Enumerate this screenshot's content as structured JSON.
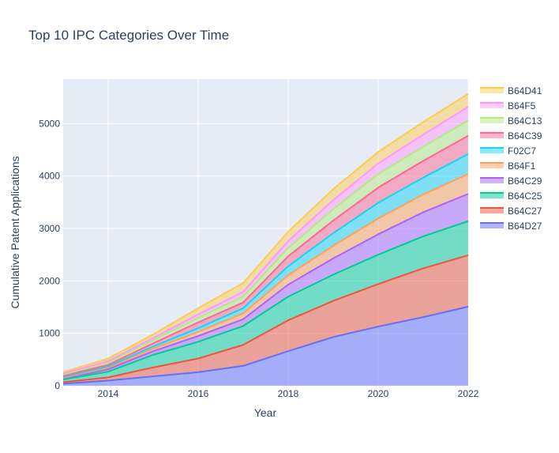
{
  "chart_data": {
    "type": "area",
    "stacked": true,
    "title": "Top 10 IPC Categories Over Time",
    "xlabel": "Year",
    "ylabel": "Cumulative Patent Applications",
    "x": [
      2013,
      2014,
      2015,
      2016,
      2017,
      2018,
      2019,
      2020,
      2021,
      2022
    ],
    "xlim": [
      2013,
      2022
    ],
    "ylim": [
      0,
      5850
    ],
    "x_ticks": [
      2014,
      2016,
      2018,
      2020,
      2022
    ],
    "y_ticks": [
      0,
      1000,
      2000,
      3000,
      4000,
      5000
    ],
    "grid": true,
    "legend_position": "right",
    "series": [
      {
        "name": "B64D27",
        "color": "#636efa",
        "values": [
          40,
          100,
          180,
          260,
          380,
          660,
          930,
          1130,
          1310,
          1510
        ]
      },
      {
        "name": "B64C27",
        "color": "#ef553b",
        "values": [
          30,
          60,
          170,
          260,
          400,
          590,
          690,
          810,
          930,
          980
        ]
      },
      {
        "name": "B64C25",
        "color": "#00cc96",
        "values": [
          50,
          110,
          240,
          320,
          360,
          450,
          500,
          560,
          610,
          650
        ]
      },
      {
        "name": "B64C29",
        "color": "#ab63fa",
        "values": [
          20,
          45,
          70,
          110,
          130,
          230,
          310,
          390,
          460,
          520
        ]
      },
      {
        "name": "B64F1",
        "color": "#ffa15a",
        "values": [
          15,
          30,
          50,
          80,
          110,
          180,
          240,
          300,
          340,
          380
        ]
      },
      {
        "name": "F02C7",
        "color": "#19d3f3",
        "values": [
          15,
          25,
          40,
          70,
          100,
          170,
          240,
          300,
          320,
          380
        ]
      },
      {
        "name": "B64C39",
        "color": "#ff6692",
        "values": [
          20,
          30,
          60,
          110,
          110,
          190,
          240,
          290,
          320,
          350
        ]
      },
      {
        "name": "B64C13",
        "color": "#b6e880",
        "values": [
          25,
          40,
          60,
          90,
          110,
          160,
          220,
          260,
          270,
          290
        ]
      },
      {
        "name": "B64F5",
        "color": "#ff97ff",
        "values": [
          20,
          30,
          40,
          60,
          90,
          130,
          170,
          200,
          230,
          260
        ]
      },
      {
        "name": "B64D41",
        "color": "#fecb52",
        "values": [
          25,
          50,
          70,
          120,
          170,
          180,
          210,
          220,
          240,
          250
        ]
      }
    ]
  }
}
